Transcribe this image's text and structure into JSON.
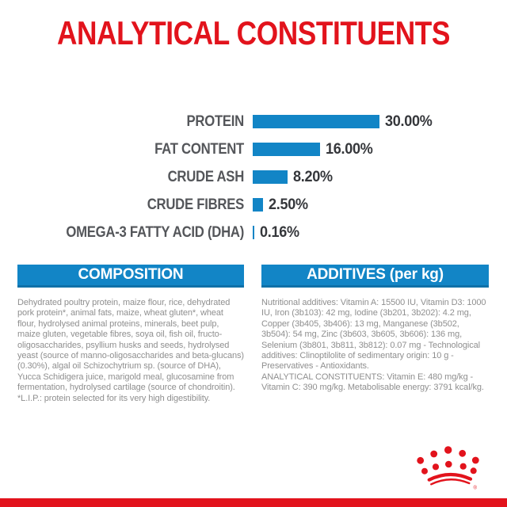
{
  "page": {
    "title": "ANALYTICAL CONSTITUENTS"
  },
  "chart_data": {
    "type": "bar",
    "orientation": "horizontal",
    "title": "ANALYTICAL CONSTITUENTS",
    "xlabel": "",
    "ylabel": "",
    "xlim": [
      0,
      30
    ],
    "grid": false,
    "legend": "none",
    "unit": "%",
    "categories": [
      "PROTEIN",
      "FAT CONTENT",
      "CRUDE ASH",
      "CRUDE FIBRES",
      "OMEGA-3 FATTY ACID (DHA)"
    ],
    "values": [
      30.0,
      16.0,
      8.2,
      2.5,
      0.16
    ],
    "value_labels": [
      "30.00%",
      "16.00%",
      "8.20%",
      "2.50%",
      "0.16%"
    ]
  },
  "composition": {
    "header": "COMPOSITION",
    "body": "Dehydrated poultry protein, maize flour, rice, dehydrated pork protein*, animal fats, maize, wheat gluten*, wheat flour, hydrolysed animal proteins, minerals, beet pulp, maize gluten, vegetable fibres, soya oil, fish oil, fructo-oligosaccharides, psyllium husks and seeds, hydrolysed yeast (source of manno-oligosaccharides and beta-glucans) (0.30%), algal oil Schizochytrium sp. (source of DHA), Yucca Schidigera juice, marigold meal, glucosamine from fermentation, hydrolysed cartilage (source of chondroitin).",
    "footnote": "*L.I.P.: protein selected for its very high digestibility."
  },
  "additives": {
    "header": "ADDITIVES (per kg)",
    "body": "Nutritional additives: Vitamin A: 15500 IU, Vitamin D3: 1000 IU, Iron (3b103): 42 mg, Iodine (3b201, 3b202): 4.2 mg, Copper (3b405, 3b406): 13 mg, Manganese (3b502, 3b504): 54 mg, Zinc (3b603, 3b605, 3b606): 136 mg, Selenium (3b801, 3b811, 3b812): 0.07 mg - Technological additives: Clinoptilolite of sedimentary origin: 10 g - Preservatives - Antioxidants.",
    "analytical": "ANALYTICAL CONSTITUENTS: Vitamin E: 480 mg/kg - Vitamin C: 390 mg/kg. Metabolisable energy: 3791 kcal/kg."
  },
  "branding": {
    "logo": "royal-canin-crown",
    "registered_mark": "®"
  },
  "colors": {
    "brand_red": "#e2131c",
    "brand_blue": "#1285c6",
    "header_border_blue": "#0f71a8",
    "chart_label_gray": "#54565a",
    "chart_value_dark": "#35373b",
    "body_text_gray": "#8f8f8f",
    "background": "#ffffff"
  }
}
